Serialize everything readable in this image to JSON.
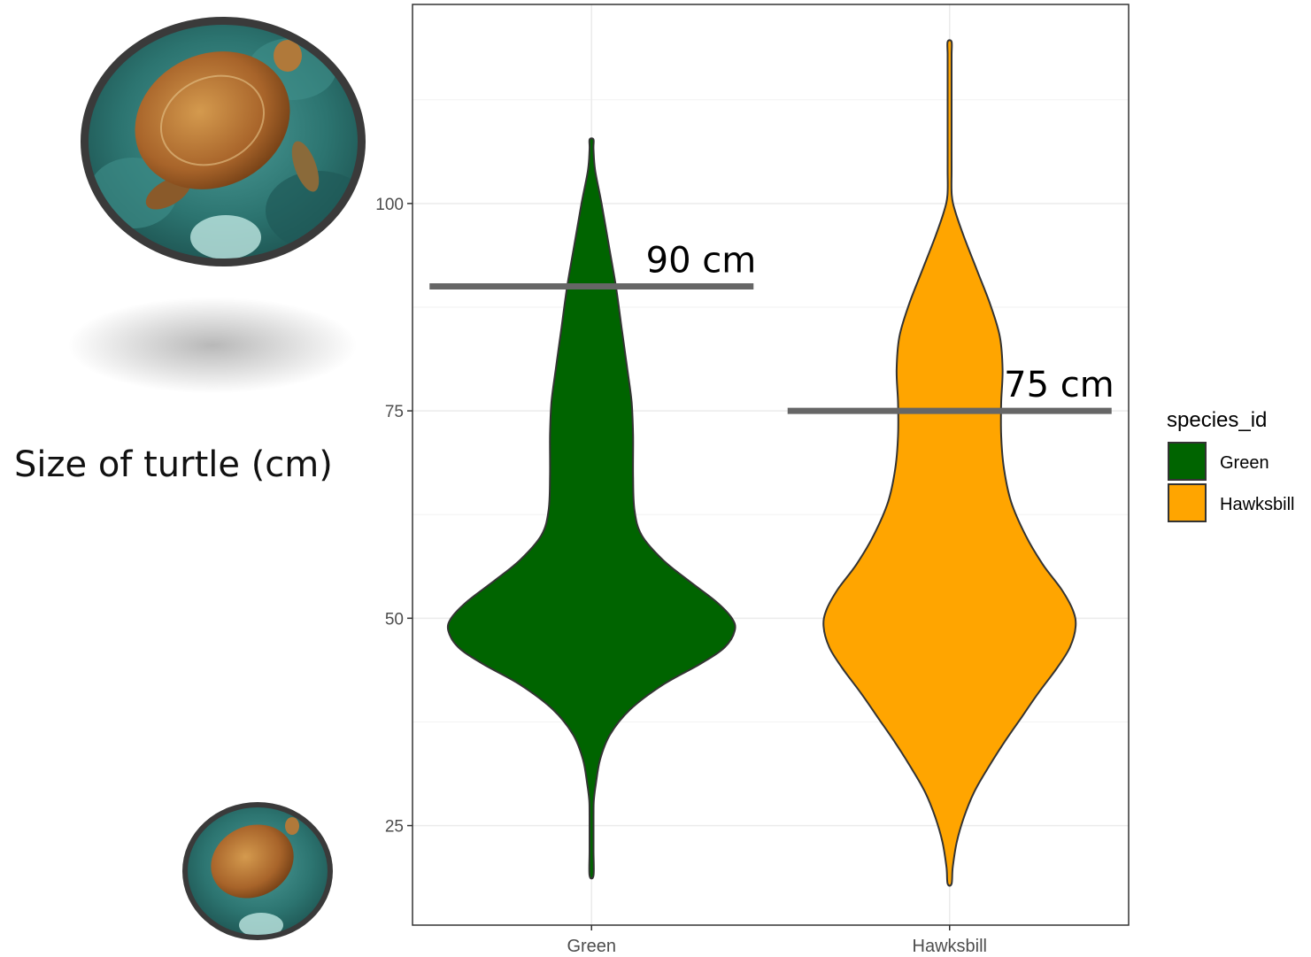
{
  "side_label": "Size of turtle (cm)",
  "images": {
    "top_photo": "turtle-photo",
    "bottom_photo": "turtle-photo"
  },
  "colors": {
    "green": "#006400",
    "hawksbill": "#FFA500",
    "reference_line": "#666666",
    "panel_border": "#333333",
    "grid": "#EBEBEB"
  },
  "chart_data": {
    "type": "violin",
    "categories": [
      "Green",
      "Hawksbill"
    ],
    "ylim": [
      13,
      124
    ],
    "yticks": [
      25,
      50,
      75,
      100
    ],
    "grid": true,
    "legend": {
      "title": "species_id",
      "position": "right",
      "entries": [
        "Green",
        "Hawksbill"
      ]
    },
    "series": [
      {
        "name": "Green",
        "color": "#006400",
        "range": [
          19,
          108
        ],
        "mode": 49,
        "reference_line": {
          "value": 90,
          "label": "90 cm"
        }
      },
      {
        "name": "Hawksbill",
        "color": "#FFA500",
        "range": [
          18,
          120
        ],
        "mode": 49,
        "reference_line": {
          "value": 75,
          "label": "75 cm"
        }
      }
    ]
  }
}
